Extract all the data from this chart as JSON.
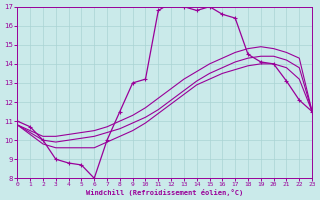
{
  "xlabel": "Windchill (Refroidissement éolien,°C)",
  "xlim": [
    0,
    23
  ],
  "ylim": [
    8,
    17
  ],
  "xticks": [
    0,
    1,
    2,
    3,
    4,
    5,
    6,
    7,
    8,
    9,
    10,
    11,
    12,
    13,
    14,
    15,
    16,
    17,
    18,
    19,
    20,
    21,
    22,
    23
  ],
  "yticks": [
    8,
    9,
    10,
    11,
    12,
    13,
    14,
    15,
    16,
    17
  ],
  "bg_color": "#caeaea",
  "line_color": "#990099",
  "grid_color": "#aad4d4",
  "curve_main_x": [
    0,
    1,
    2,
    3,
    4,
    5,
    6,
    7,
    8,
    9,
    10,
    11,
    12,
    13,
    14,
    15,
    16,
    17,
    18,
    19,
    20,
    21,
    22,
    23
  ],
  "curve_main_y": [
    11.0,
    10.7,
    10.0,
    9.0,
    8.8,
    8.7,
    8.0,
    10.0,
    11.5,
    13.0,
    13.2,
    16.8,
    17.2,
    17.0,
    16.8,
    17.0,
    16.6,
    16.4,
    14.5,
    14.1,
    14.0,
    13.1,
    12.1,
    11.5
  ],
  "curve2_x": [
    0,
    1,
    2,
    3,
    4,
    5,
    6,
    7,
    8,
    9,
    10,
    11,
    12,
    13,
    14,
    15,
    16,
    17,
    18,
    19,
    20,
    21,
    22,
    23
  ],
  "curve2_y": [
    10.8,
    10.4,
    10.0,
    9.9,
    10.0,
    10.1,
    10.2,
    10.4,
    10.6,
    10.9,
    11.2,
    11.6,
    12.1,
    12.6,
    13.1,
    13.5,
    13.8,
    14.1,
    14.3,
    14.4,
    14.4,
    14.2,
    13.8,
    11.5
  ],
  "curve3_x": [
    0,
    1,
    2,
    3,
    4,
    5,
    6,
    7,
    8,
    9,
    10,
    11,
    12,
    13,
    14,
    15,
    16,
    17,
    18,
    19,
    20,
    21,
    22,
    23
  ],
  "curve3_y": [
    10.8,
    10.5,
    10.2,
    10.2,
    10.3,
    10.4,
    10.5,
    10.7,
    11.0,
    11.3,
    11.7,
    12.2,
    12.7,
    13.2,
    13.6,
    14.0,
    14.3,
    14.6,
    14.8,
    14.9,
    14.8,
    14.6,
    14.3,
    11.5
  ],
  "curve4_x": [
    0,
    1,
    2,
    3,
    4,
    5,
    6,
    7,
    8,
    9,
    10,
    11,
    12,
    13,
    14,
    15,
    16,
    17,
    18,
    19,
    20,
    21,
    22,
    23
  ],
  "curve4_y": [
    10.8,
    10.3,
    9.8,
    9.6,
    9.6,
    9.6,
    9.6,
    9.9,
    10.2,
    10.5,
    10.9,
    11.4,
    11.9,
    12.4,
    12.9,
    13.2,
    13.5,
    13.7,
    13.9,
    14.0,
    14.0,
    13.8,
    13.2,
    11.5
  ]
}
